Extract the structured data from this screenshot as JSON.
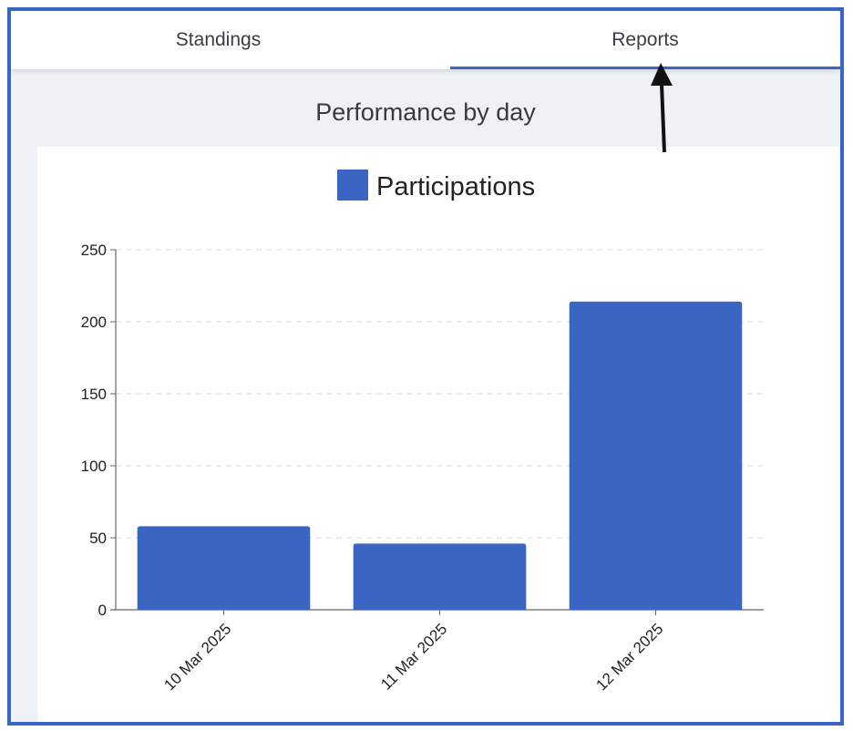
{
  "tabs": [
    {
      "label": "Standings",
      "active": false
    },
    {
      "label": "Reports",
      "active": true
    }
  ],
  "page_title": "Performance by day",
  "colors": {
    "accent": "#3a65c2",
    "bar": "#3a65c2",
    "arrow": "#111111"
  },
  "annotation": {
    "type": "arrow",
    "points_to": "tab-reports"
  },
  "chart_data": {
    "type": "bar",
    "categories": [
      "10 Mar 2025",
      "11 Mar 2025",
      "12 Mar 2025"
    ],
    "series": [
      {
        "name": "Participations",
        "values": [
          58,
          46,
          214
        ]
      }
    ],
    "ylim": [
      0,
      250
    ],
    "yticks": [
      0,
      50,
      100,
      150,
      200,
      250
    ],
    "grid": true,
    "legend": "top-center"
  }
}
